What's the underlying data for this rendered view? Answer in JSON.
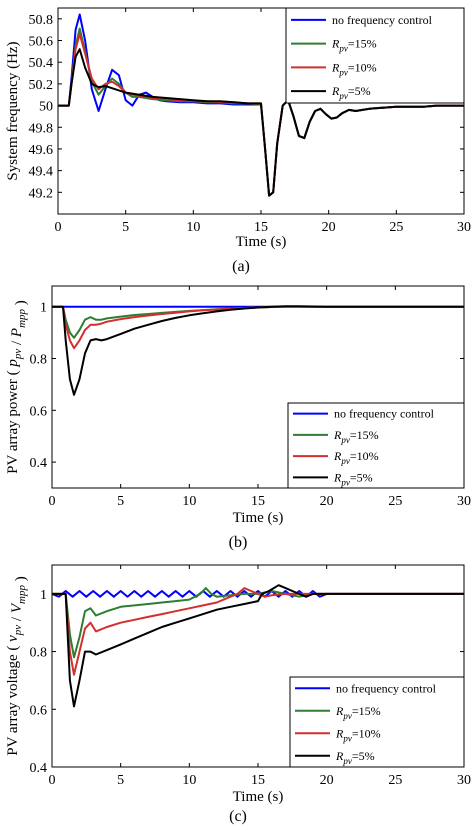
{
  "chart_data": [
    {
      "type": "line",
      "panel_label": "(a)",
      "xlabel": "Time (s)",
      "ylabel": "System frequency (Hz)",
      "xlim": [
        0,
        30
      ],
      "ylim": [
        49.0,
        50.9
      ],
      "xticks": [
        0,
        5,
        10,
        15,
        20,
        25,
        30
      ],
      "yticks": [
        49.2,
        49.4,
        49.6,
        49.8,
        50,
        50.2,
        50.4,
        50.6,
        50.8
      ],
      "grid": false,
      "legend_position": "top-right",
      "series": [
        {
          "name": "no frequency control",
          "color": "#0000ff",
          "x": [
            0,
            0.8,
            1.0,
            1.3,
            1.6,
            2.0,
            2.5,
            3.0,
            3.5,
            4.0,
            4.5,
            5.0,
            5.5,
            6.0,
            6.5,
            7.0,
            7.5,
            8.0,
            9.0,
            10,
            11,
            12,
            13,
            14,
            15,
            15.3,
            15.6,
            15.9,
            16.2,
            16.6,
            17.0,
            17.4,
            17.8,
            18.2,
            18.6,
            19.0,
            19.4,
            19.8,
            20.2,
            20.6,
            21.0,
            21.5,
            22.0,
            22.5,
            23,
            24,
            25,
            26,
            27,
            28,
            29,
            30
          ],
          "y": [
            50,
            50,
            50.25,
            50.7,
            50.84,
            50.6,
            50.15,
            49.95,
            50.15,
            50.33,
            50.28,
            50.05,
            50.0,
            50.1,
            50.12,
            50.08,
            50.05,
            50.04,
            50.03,
            50.03,
            50.02,
            50.02,
            50.01,
            50.01,
            50.01,
            49.6,
            49.17,
            49.2,
            49.65,
            50.0,
            50.05,
            49.9,
            49.72,
            49.7,
            49.85,
            49.95,
            49.97,
            49.92,
            49.88,
            49.89,
            49.93,
            49.96,
            49.95,
            49.96,
            49.97,
            49.98,
            49.99,
            49.99,
            49.99,
            50,
            50,
            50
          ]
        },
        {
          "name": "R_pv=15%",
          "color": "#2e7d32",
          "x": [
            0,
            0.8,
            1.0,
            1.3,
            1.6,
            2.0,
            2.5,
            3.0,
            3.5,
            4.0,
            4.5,
            5.0,
            5.5,
            6.0,
            6.5,
            7.0,
            8.0,
            9.0,
            10,
            11,
            12,
            13,
            14,
            15,
            15.3,
            15.6,
            15.9,
            16.2,
            16.6,
            17.0,
            17.4,
            17.8,
            18.2,
            18.6,
            19.0,
            19.4,
            19.8,
            20.2,
            20.6,
            21.0,
            21.5,
            22.0,
            22.5,
            23,
            24,
            25,
            26,
            27,
            28,
            29,
            30
          ],
          "y": [
            50,
            50,
            50.2,
            50.55,
            50.71,
            50.5,
            50.22,
            50.1,
            50.18,
            50.25,
            50.2,
            50.12,
            50.08,
            50.08,
            50.07,
            50.06,
            50.05,
            50.04,
            50.04,
            50.03,
            50.03,
            50.02,
            50.02,
            50.01,
            49.6,
            49.17,
            49.2,
            49.65,
            50.0,
            50.05,
            49.9,
            49.72,
            49.7,
            49.85,
            49.95,
            49.97,
            49.92,
            49.88,
            49.89,
            49.93,
            49.96,
            49.95,
            49.96,
            49.97,
            49.98,
            49.99,
            49.99,
            49.99,
            50,
            50,
            50
          ]
        },
        {
          "name": "R_pv=10%",
          "color": "#d32f2f",
          "x": [
            0,
            0.8,
            1.0,
            1.3,
            1.6,
            2.0,
            2.5,
            3.0,
            3.5,
            4.0,
            4.5,
            5.0,
            5.5,
            6.0,
            7.0,
            8.0,
            9.0,
            10,
            11,
            12,
            13,
            14,
            15,
            15.3,
            15.6,
            15.9,
            16.2,
            16.6,
            17.0,
            17.4,
            17.8,
            18.2,
            18.6,
            19.0,
            19.4,
            19.8,
            20.2,
            20.6,
            21.0,
            21.5,
            22.0,
            22.5,
            23,
            24,
            25,
            26,
            27,
            28,
            29,
            30
          ],
          "y": [
            50,
            50,
            50.2,
            50.52,
            50.66,
            50.48,
            50.25,
            50.15,
            50.2,
            50.22,
            50.18,
            50.12,
            50.1,
            50.09,
            50.07,
            50.06,
            50.05,
            50.04,
            50.04,
            50.03,
            50.03,
            50.02,
            50.02,
            49.6,
            49.17,
            49.2,
            49.65,
            50.0,
            50.05,
            49.9,
            49.72,
            49.7,
            49.85,
            49.95,
            49.97,
            49.92,
            49.88,
            49.89,
            49.93,
            49.96,
            49.95,
            49.96,
            49.97,
            49.98,
            49.99,
            49.99,
            49.99,
            50,
            50,
            50
          ]
        },
        {
          "name": "R_pv=5%",
          "color": "#000000",
          "x": [
            0,
            0.8,
            1.0,
            1.3,
            1.6,
            2.0,
            2.5,
            3.0,
            3.5,
            4.0,
            4.5,
            5.0,
            6.0,
            7.0,
            8.0,
            9.0,
            10,
            11,
            12,
            13,
            14,
            15,
            15.3,
            15.6,
            15.9,
            16.2,
            16.6,
            17.0,
            17.4,
            17.8,
            18.2,
            18.6,
            19.0,
            19.4,
            19.8,
            20.2,
            20.6,
            21.0,
            21.5,
            22.0,
            22.5,
            23,
            24,
            25,
            26,
            27,
            28,
            29,
            30
          ],
          "y": [
            50,
            50,
            50.2,
            50.45,
            50.52,
            50.35,
            50.2,
            50.17,
            50.18,
            50.16,
            50.14,
            50.12,
            50.1,
            50.08,
            50.07,
            50.06,
            50.05,
            50.04,
            50.04,
            50.03,
            50.02,
            50.02,
            49.6,
            49.17,
            49.2,
            49.65,
            50.0,
            50.05,
            49.9,
            49.72,
            49.7,
            49.85,
            49.95,
            49.97,
            49.92,
            49.88,
            49.89,
            49.93,
            49.96,
            49.95,
            49.96,
            49.97,
            49.98,
            49.99,
            49.99,
            49.99,
            50,
            50,
            50
          ]
        }
      ]
    },
    {
      "type": "line",
      "panel_label": "(b)",
      "xlabel": "Time (s)",
      "ylabel": "PV array power ( p_pv / P_mpp )",
      "xlim": [
        0,
        30
      ],
      "ylim": [
        0.3,
        1.08
      ],
      "xticks": [
        0,
        5,
        10,
        15,
        20,
        25,
        30
      ],
      "yticks": [
        0.4,
        0.6,
        0.8,
        1
      ],
      "grid": false,
      "legend_position": "bottom-right",
      "series": [
        {
          "name": "no frequency control",
          "color": "#0000ff",
          "x": [
            0,
            30
          ],
          "y": [
            1,
            1
          ]
        },
        {
          "name": "R_pv=15%",
          "color": "#2e7d32",
          "x": [
            0,
            0.8,
            1.0,
            1.3,
            1.6,
            2.0,
            2.4,
            2.8,
            3.2,
            3.6,
            4.0,
            5,
            6,
            7,
            8,
            9,
            10,
            11,
            12,
            13,
            14,
            15,
            16,
            17,
            18,
            19,
            20,
            22,
            25,
            30
          ],
          "y": [
            1,
            1,
            0.95,
            0.9,
            0.88,
            0.91,
            0.95,
            0.96,
            0.95,
            0.95,
            0.955,
            0.962,
            0.968,
            0.972,
            0.976,
            0.98,
            0.984,
            0.987,
            0.99,
            0.993,
            0.995,
            0.997,
            0.999,
            1.001,
            1.001,
            1.0,
            1.0,
            1,
            1,
            1
          ]
        },
        {
          "name": "R_pv=10%",
          "color": "#d32f2f",
          "x": [
            0,
            0.8,
            1.0,
            1.3,
            1.6,
            2.0,
            2.4,
            2.8,
            3.2,
            3.6,
            4.0,
            5,
            6,
            7,
            8,
            9,
            10,
            11,
            12,
            13,
            14,
            15,
            16,
            17,
            18,
            19,
            20,
            22,
            25,
            30
          ],
          "y": [
            1,
            1,
            0.93,
            0.87,
            0.84,
            0.87,
            0.91,
            0.93,
            0.93,
            0.935,
            0.942,
            0.952,
            0.96,
            0.966,
            0.972,
            0.977,
            0.982,
            0.986,
            0.989,
            0.992,
            0.995,
            0.997,
            0.999,
            1.001,
            1.001,
            1.0,
            1.0,
            1,
            1,
            1
          ]
        },
        {
          "name": "R_pv=5%",
          "color": "#000000",
          "x": [
            0,
            0.8,
            1.0,
            1.3,
            1.6,
            2.0,
            2.4,
            2.8,
            3.2,
            3.6,
            4.0,
            5,
            6,
            7,
            8,
            9,
            10,
            11,
            12,
            13,
            14,
            15,
            16,
            17,
            18,
            19,
            20,
            22,
            25,
            30
          ],
          "y": [
            1,
            1,
            0.87,
            0.72,
            0.66,
            0.72,
            0.82,
            0.87,
            0.875,
            0.87,
            0.875,
            0.895,
            0.915,
            0.93,
            0.945,
            0.957,
            0.967,
            0.975,
            0.982,
            0.988,
            0.993,
            0.997,
            1.0,
            1.002,
            1.002,
            1.001,
            1.0,
            1,
            1,
            1
          ]
        }
      ]
    },
    {
      "type": "line",
      "panel_label": "(c)",
      "xlabel": "Time (s)",
      "ylabel": "PV array voltage ( v_pv / V_mpp )",
      "xlim": [
        0,
        30
      ],
      "ylim": [
        0.4,
        1.1
      ],
      "xticks": [
        0,
        5,
        10,
        15,
        20,
        25,
        30
      ],
      "yticks": [
        0.4,
        0.6,
        0.8,
        1
      ],
      "grid": false,
      "legend_position": "bottom-right",
      "series": [
        {
          "name": "no frequency control",
          "color": "#0000ff",
          "x": [
            0,
            0.5,
            1.0,
            1.5,
            2.0,
            2.5,
            3.0,
            3.5,
            4.0,
            4.5,
            5.0,
            5.5,
            6.0,
            6.5,
            7.0,
            7.5,
            8.0,
            8.5,
            9.0,
            9.5,
            10,
            10.5,
            11,
            11.5,
            12,
            12.5,
            13,
            13.5,
            14,
            14.5,
            15,
            15.5,
            16,
            16.5,
            17,
            17.5,
            18,
            18.5,
            19,
            19.5,
            20,
            21,
            22,
            23,
            24,
            25,
            26,
            27,
            28,
            29,
            30
          ],
          "y": [
            1,
            0.99,
            1.01,
            0.99,
            1.01,
            0.99,
            1.01,
            0.99,
            1.01,
            0.99,
            1.01,
            0.99,
            1.01,
            0.99,
            1.01,
            0.99,
            1.01,
            0.99,
            1.01,
            0.99,
            1.01,
            0.99,
            1.01,
            0.99,
            1.01,
            0.99,
            1.01,
            0.99,
            1.01,
            0.99,
            1.01,
            0.99,
            1.01,
            0.99,
            1.01,
            0.99,
            1.01,
            0.99,
            1.01,
            0.99,
            1.0,
            1.0,
            1.0,
            1.0,
            1.0,
            1.0,
            1.0,
            1.0,
            1.0,
            1.0,
            1.0
          ]
        },
        {
          "name": "R_pv=15%",
          "color": "#2e7d32",
          "x": [
            0,
            1.0,
            1.3,
            1.6,
            2.0,
            2.4,
            2.8,
            3.2,
            4,
            5,
            6,
            7,
            8,
            9,
            10,
            10.8,
            11.2,
            11.6,
            12,
            13,
            14,
            15,
            16,
            17,
            18,
            19,
            20,
            22,
            25,
            30
          ],
          "y": [
            1,
            1,
            0.86,
            0.78,
            0.85,
            0.94,
            0.95,
            0.925,
            0.94,
            0.955,
            0.96,
            0.965,
            0.97,
            0.975,
            0.98,
            1.0,
            1.02,
            1.0,
            0.99,
            0.995,
            1.0,
            1.0,
            1.01,
            1.0,
            0.99,
            1.0,
            1.0,
            1.0,
            1.0,
            1.0
          ]
        },
        {
          "name": "R_pv=10%",
          "color": "#d32f2f",
          "x": [
            0,
            1.0,
            1.3,
            1.6,
            2.0,
            2.4,
            2.8,
            3.2,
            4,
            5,
            6,
            7,
            8,
            9,
            10,
            11,
            12,
            13,
            13.5,
            14,
            14.5,
            15,
            15.5,
            16,
            17,
            18,
            19,
            20,
            22,
            25,
            30
          ],
          "y": [
            1,
            1,
            0.8,
            0.72,
            0.8,
            0.88,
            0.9,
            0.87,
            0.885,
            0.9,
            0.91,
            0.92,
            0.93,
            0.94,
            0.95,
            0.96,
            0.97,
            0.99,
            1.0,
            1.02,
            1.01,
            1.0,
            0.99,
            0.995,
            1.0,
            1.0,
            1.0,
            1.0,
            1.0,
            1.0,
            1.0
          ]
        },
        {
          "name": "R_pv=5%",
          "color": "#000000",
          "x": [
            0,
            1.0,
            1.3,
            1.6,
            2.0,
            2.4,
            2.8,
            3.2,
            4,
            5,
            6,
            7,
            8,
            9,
            10,
            11,
            12,
            13,
            14,
            15,
            15.3,
            15.8,
            16.5,
            17,
            17.5,
            18,
            18.5,
            19,
            20,
            22,
            25,
            30
          ],
          "y": [
            1,
            1,
            0.7,
            0.61,
            0.7,
            0.8,
            0.8,
            0.79,
            0.805,
            0.825,
            0.845,
            0.865,
            0.885,
            0.9,
            0.915,
            0.93,
            0.945,
            0.955,
            0.965,
            0.975,
            1.0,
            1.01,
            1.03,
            1.02,
            1.01,
            1.0,
            0.99,
            1.0,
            1.0,
            1.0,
            1.0,
            1.0
          ]
        }
      ]
    }
  ]
}
